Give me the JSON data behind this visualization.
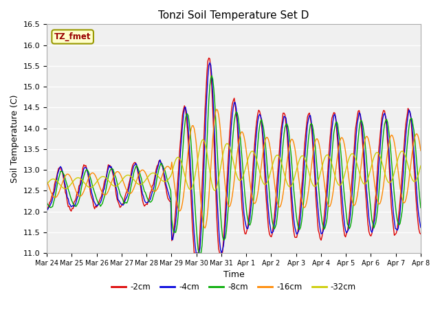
{
  "title": "Tonzi Soil Temperature Set D",
  "xlabel": "Time",
  "ylabel": "Soil Temperature (C)",
  "ylim": [
    11.0,
    16.5
  ],
  "fig_bg": "#ffffff",
  "plot_bg": "#f0f0f0",
  "legend_label": "TZ_fmet",
  "legend_bg": "#ffffcc",
  "legend_border": "#999900",
  "series": [
    {
      "label": "-2cm",
      "color": "#dd0000"
    },
    {
      "label": "-4cm",
      "color": "#0000dd"
    },
    {
      "label": "-8cm",
      "color": "#00aa00"
    },
    {
      "label": "-16cm",
      "color": "#ff8800"
    },
    {
      "label": "-32cm",
      "color": "#cccc00"
    }
  ],
  "x_tick_labels": [
    "Mar 24",
    "Mar 25",
    "Mar 26",
    "Mar 27",
    "Mar 28",
    "Mar 29",
    "Mar 30",
    "Mar 31",
    "Apr 1",
    "Apr 2",
    "Apr 3",
    "Apr 4",
    "Apr 5",
    "Apr 6",
    "Apr 7",
    "Apr 8"
  ],
  "yticks": [
    11.0,
    11.5,
    12.0,
    12.5,
    13.0,
    13.5,
    14.0,
    14.5,
    15.0,
    15.5,
    16.0,
    16.5
  ]
}
